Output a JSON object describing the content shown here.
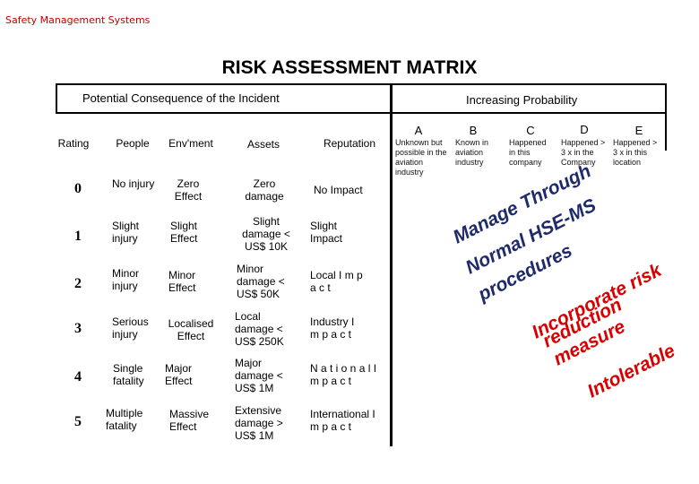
{
  "header": {
    "brand": "Safety Management Systems",
    "title": "RISK ASSESSMENT  MATRIX"
  },
  "consequence": {
    "title": "Potential Consequence of the  Incident",
    "columns": [
      "Rating",
      "People",
      "Env'ment",
      "Assets",
      "Reputation"
    ],
    "rows": [
      {
        "rating": "0",
        "people": "No injury",
        "env": "Zero Effect",
        "assets": "Zero damage",
        "reputation": "No Impact"
      },
      {
        "rating": "1",
        "people": "Slight injury",
        "env": "Slight Effect",
        "assets": "Slight damage < US$ 10K",
        "reputation": "Slight Impact"
      },
      {
        "rating": "2",
        "people": "Minor injury",
        "env": "Minor Effect",
        "assets": "Minor damage < US$ 50K",
        "reputation": "Local I m p a c t"
      },
      {
        "rating": "3",
        "people": "Serious injury",
        "env": "Localised Effect",
        "assets": "Local damage < US$ 250K",
        "reputation": "Industry I m p a c t"
      },
      {
        "rating": "4",
        "people": "Single fatality",
        "env": "Major Effect",
        "assets": "Major damage < US$ 1M",
        "reputation": "N a t i o n a l I m p a c t"
      },
      {
        "rating": "5",
        "people": "Multiple fatality",
        "env": "Massive Effect",
        "assets": "Extensive damage > US$ 1M",
        "reputation": "International I m p a c t"
      }
    ]
  },
  "probability": {
    "title": "Increasing Probability",
    "columns": [
      {
        "letter": "A",
        "desc": "Unknown but possible in the aviation industry"
      },
      {
        "letter": "B",
        "desc": "Known in aviation industry"
      },
      {
        "letter": "C",
        "desc": "Happened in this company"
      },
      {
        "letter": "D",
        "desc": "Happened > 3 x in the Company"
      },
      {
        "letter": "E",
        "desc": "Happened > 3 x in this location"
      }
    ]
  },
  "overlay": {
    "manage_1": "Manage Through",
    "manage_2": "Normal HSE-MS",
    "manage_3": "procedures",
    "risk_1": "Incorporate risk",
    "risk_2": "reduction",
    "risk_3": "measure",
    "intolerable": "Intolerable"
  },
  "colors": {
    "brand": "#c00000",
    "navy": "#1f2a6b",
    "red": "#d80000"
  }
}
